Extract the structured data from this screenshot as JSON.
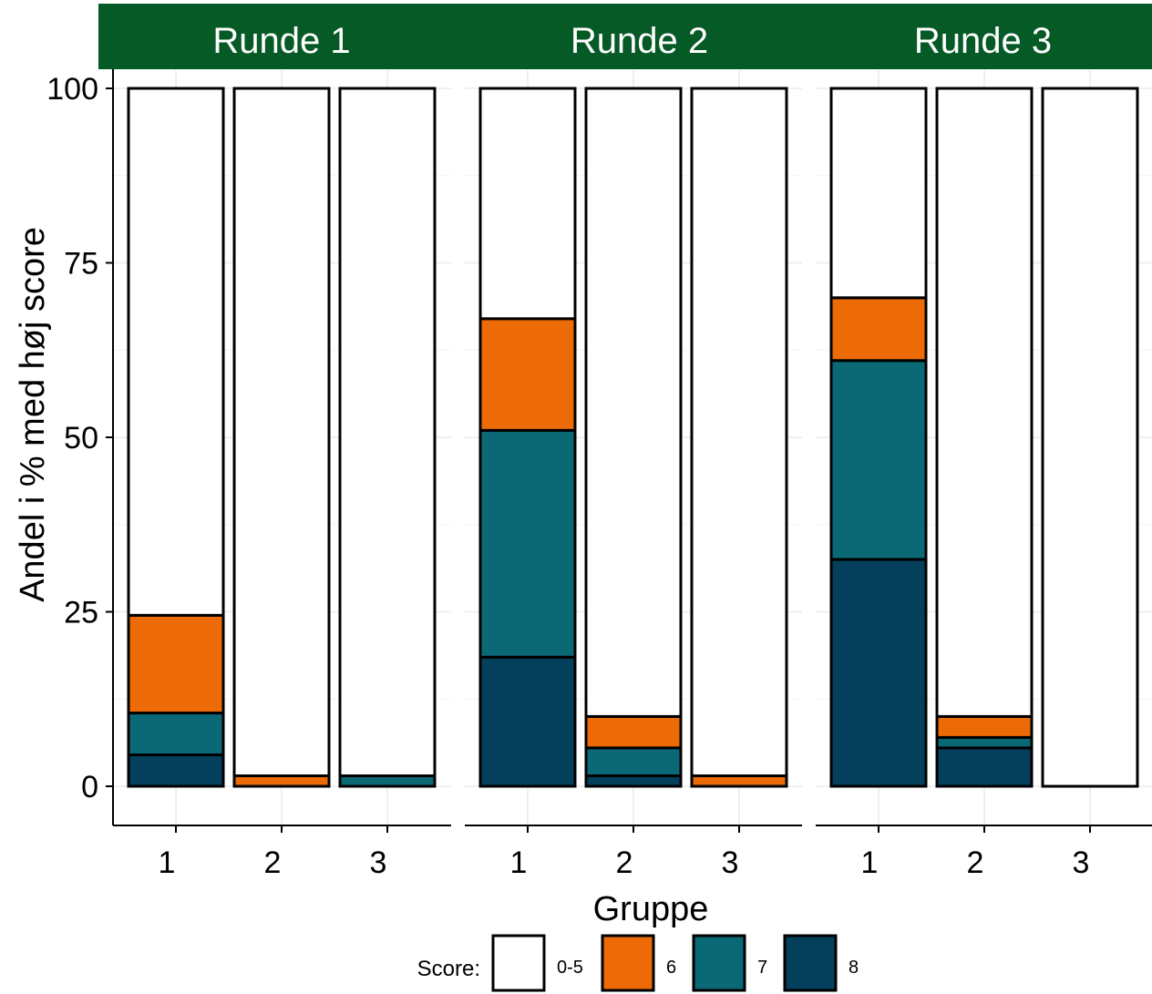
{
  "chart_data": {
    "type": "bar",
    "stacked": true,
    "facets": [
      {
        "label": "Runde 1",
        "categories": [
          "1",
          "2",
          "3"
        ],
        "series": [
          {
            "name": "8",
            "values": [
              4.5,
              0,
              0
            ]
          },
          {
            "name": "7",
            "values": [
              6,
              0,
              1.5
            ]
          },
          {
            "name": "6",
            "values": [
              14,
              1.5,
              0
            ]
          },
          {
            "name": "0-5",
            "values": [
              75.5,
              98.5,
              98.5
            ]
          }
        ]
      },
      {
        "label": "Runde 2",
        "categories": [
          "1",
          "2",
          "3"
        ],
        "series": [
          {
            "name": "8",
            "values": [
              18.5,
              1.5,
              0
            ]
          },
          {
            "name": "7",
            "values": [
              32.5,
              4,
              0
            ]
          },
          {
            "name": "6",
            "values": [
              16,
              4.5,
              1.5
            ]
          },
          {
            "name": "0-5",
            "values": [
              33,
              90,
              98.5
            ]
          }
        ]
      },
      {
        "label": "Runde 3",
        "categories": [
          "1",
          "2",
          "3"
        ],
        "series": [
          {
            "name": "8",
            "values": [
              32.5,
              5.5,
              0
            ]
          },
          {
            "name": "7",
            "values": [
              28.5,
              1.5,
              0
            ]
          },
          {
            "name": "6",
            "values": [
              9,
              3,
              0
            ]
          },
          {
            "name": "0-5",
            "values": [
              30,
              90,
              100
            ]
          }
        ]
      }
    ],
    "xlabel": "Gruppe",
    "ylabel": "Andel i % med høj score",
    "ylim": [
      0,
      100
    ],
    "yticks": [
      0,
      25,
      50,
      75,
      100
    ],
    "grid": true,
    "legend": {
      "title": "Score:",
      "position": "bottom",
      "entries": [
        {
          "name": "0-5",
          "color": "#ffffff"
        },
        {
          "name": "6",
          "color": "#ed6b06"
        },
        {
          "name": "7",
          "color": "#0a6975"
        },
        {
          "name": "8",
          "color": "#043f5c"
        }
      ]
    },
    "colors": {
      "strip": "#065a26",
      "0-5": "#ffffff",
      "6": "#ed6b06",
      "7": "#0a6975",
      "8": "#043f5c"
    }
  }
}
